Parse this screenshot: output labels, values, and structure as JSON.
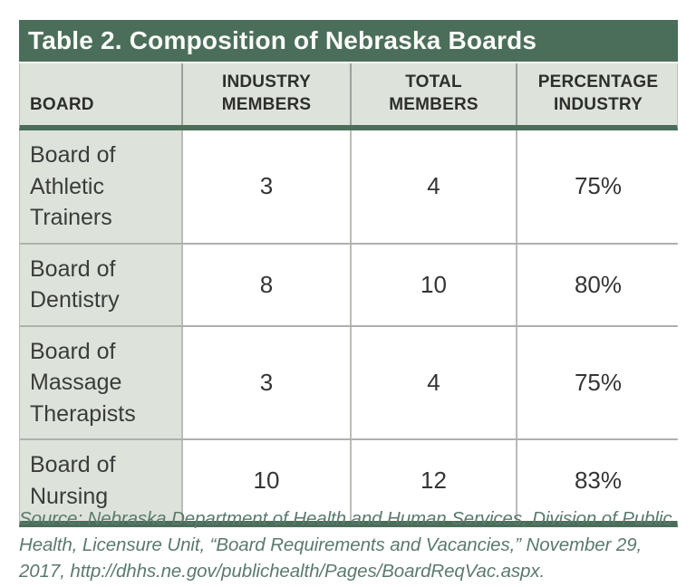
{
  "title": "Table 2. Composition of Nebraska Boards",
  "table": {
    "headers": {
      "board": {
        "lines": [
          "BOARD"
        ]
      },
      "industry": {
        "lines": [
          "INDUSTRY",
          "MEMBERS"
        ]
      },
      "total": {
        "lines": [
          "TOTAL",
          "MEMBERS"
        ]
      },
      "percentage": {
        "lines": [
          "PERCENTAGE",
          "INDUSTRY"
        ]
      }
    },
    "rows": [
      {
        "board": "Board of Athletic Trainers",
        "industry_members": "3",
        "total_members": "4",
        "percentage_industry": "75%"
      },
      {
        "board": "Board of Dentistry",
        "industry_members": "8",
        "total_members": "10",
        "percentage_industry": "80%"
      },
      {
        "board": "Board of Massage Therapists",
        "industry_members": "3",
        "total_members": "4",
        "percentage_industry": "75%"
      },
      {
        "board": "Board of Nursing",
        "industry_members": "10",
        "total_members": "12",
        "percentage_industry": "83%"
      }
    ]
  },
  "source_note": "Source: Nebraska Department of Health and Human Services, Division of Public Health, Licensure Unit, “Board Requirements and Vacancies,” November 29, 2017, http://dhhs.ne.gov/publichealth/Pages/BoardReqVac.aspx.",
  "colors": {
    "header_green": "#4b6e5a",
    "light_cell_bg": "#dde3da",
    "source_text": "#5b7a6d",
    "body_text": "#333534"
  },
  "chart_data": {
    "type": "table",
    "title": "Table 2. Composition of Nebraska Boards",
    "columns": [
      "BOARD",
      "INDUSTRY MEMBERS",
      "TOTAL MEMBERS",
      "PERCENTAGE INDUSTRY"
    ],
    "rows": [
      [
        "Board of Athletic Trainers",
        3,
        4,
        "75%"
      ],
      [
        "Board of Dentistry",
        8,
        10,
        "80%"
      ],
      [
        "Board of Massage Therapists",
        3,
        4,
        "75%"
      ],
      [
        "Board of Nursing",
        10,
        12,
        "83%"
      ]
    ]
  }
}
